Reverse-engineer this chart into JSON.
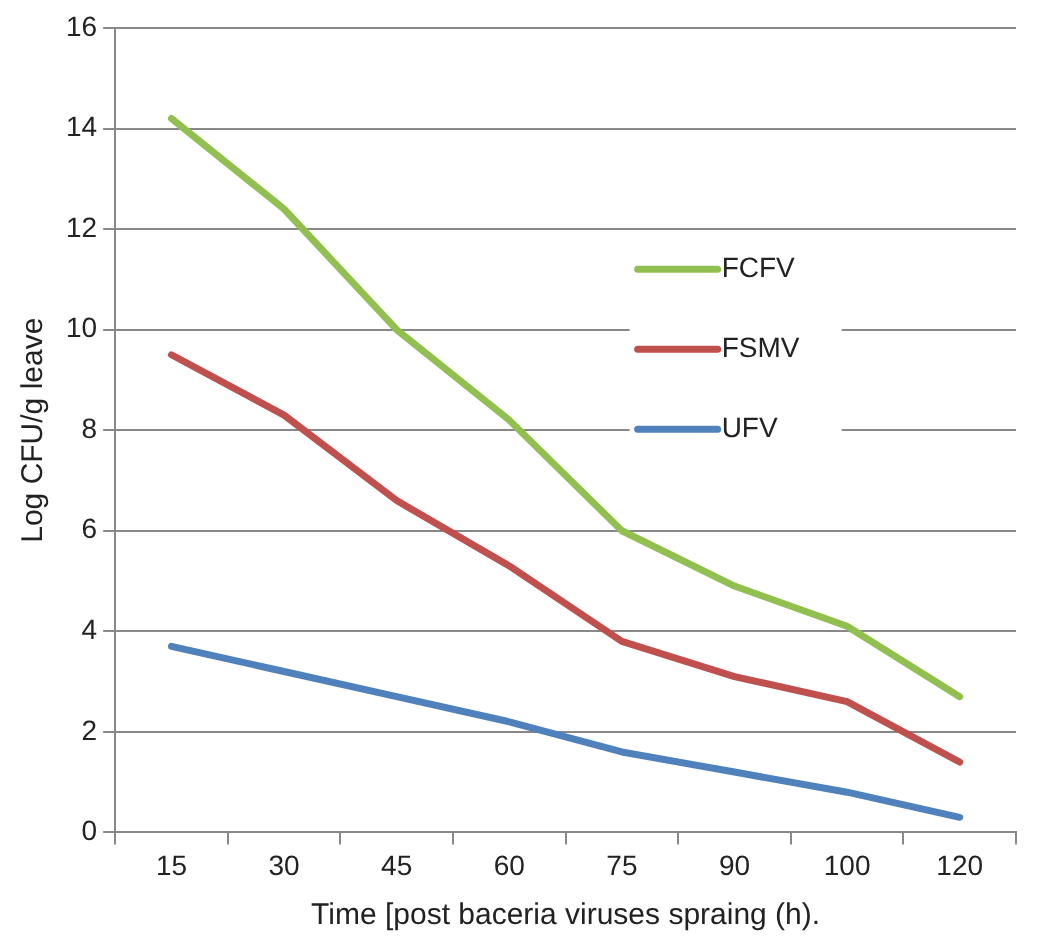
{
  "chart_data": {
    "type": "line",
    "xlabel": "Time [post baceria viruses spraing (h).",
    "ylabel": "Log CFU/g leave",
    "categories": [
      "15",
      "30",
      "45",
      "60",
      "75",
      "90",
      "100",
      "120"
    ],
    "series": [
      {
        "name": "FCFV",
        "color": "#92c050",
        "values": [
          14.2,
          12.4,
          10.0,
          8.2,
          6.0,
          4.9,
          4.1,
          2.7
        ]
      },
      {
        "name": "FSMV",
        "color": "#c0504d",
        "values": [
          9.5,
          8.3,
          6.6,
          5.3,
          3.8,
          3.1,
          2.6,
          1.4
        ]
      },
      {
        "name": "UFV",
        "color": "#4f81bd",
        "values": [
          3.7,
          3.2,
          2.7,
          2.2,
          1.6,
          1.2,
          0.8,
          0.3
        ]
      }
    ],
    "ylim": [
      0,
      16
    ],
    "yticks": [
      0,
      2,
      4,
      6,
      8,
      10,
      12,
      14,
      16
    ],
    "grid": "y",
    "legend": "right",
    "marker": "none"
  }
}
